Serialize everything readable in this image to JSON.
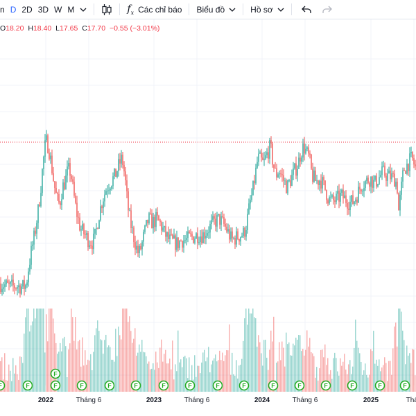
{
  "toolbar": {
    "interval_partial": "n",
    "intervals": [
      "D",
      "2D",
      "3D",
      "W",
      "M"
    ],
    "active_interval": "D",
    "indicators_label": "Các chỉ báo",
    "chart_label": "Biểu đồ",
    "profile_label": "Hồ sơ",
    "icons": [
      "chevron-down-icon",
      "candles-icon",
      "fx-icon",
      "undo-icon",
      "redo-icon"
    ]
  },
  "legend": {
    "o_label": "O",
    "o_value": "18.20",
    "h_label": "H",
    "h_value": "18.40",
    "l_label": "L",
    "l_value": "17.65",
    "c_label": "C",
    "c_value": "17.70",
    "change": "−0.55 (−3.01%)"
  },
  "colors": {
    "up": "#26a69a",
    "down": "#ef5350",
    "accent": "#2962ff",
    "event": "#22ab22",
    "price_line": "#f23645"
  },
  "chart_data": {
    "type": "candlestick",
    "x_tick_labels": [
      "2022",
      "Tháng 6",
      "2023",
      "Tháng 6",
      "2024",
      "Tháng 6",
      "2025",
      "Thán"
    ],
    "bold_ticks": [
      "2022",
      "2023",
      "2024",
      "2025"
    ],
    "price_path": [
      [
        0,
        9.3
      ],
      [
        6,
        9.2
      ],
      [
        14,
        9.0
      ],
      [
        24,
        9.1
      ],
      [
        34,
        9.0
      ],
      [
        38,
        9.2
      ],
      [
        40,
        10.2
      ],
      [
        45,
        12.0
      ],
      [
        50,
        13.5
      ],
      [
        55,
        15.5
      ],
      [
        58,
        17.0
      ],
      [
        62,
        19.5
      ],
      [
        66,
        21.5
      ],
      [
        70,
        21.0
      ],
      [
        74,
        19.5
      ],
      [
        78,
        17.8
      ],
      [
        82,
        16.5
      ],
      [
        86,
        16.0
      ],
      [
        90,
        17.5
      ],
      [
        94,
        18.0
      ],
      [
        98,
        19.0
      ],
      [
        102,
        18.8
      ],
      [
        106,
        17.0
      ],
      [
        110,
        15.5
      ],
      [
        116,
        14.0
      ],
      [
        122,
        13.5
      ],
      [
        128,
        13.0
      ],
      [
        134,
        12.8
      ],
      [
        138,
        13.5
      ],
      [
        142,
        15.0
      ],
      [
        148,
        16.5
      ],
      [
        154,
        17.5
      ],
      [
        160,
        18.0
      ],
      [
        166,
        18.5
      ],
      [
        172,
        19.5
      ],
      [
        176,
        20.0
      ],
      [
        180,
        18.5
      ],
      [
        184,
        16.0
      ],
      [
        188,
        14.5
      ],
      [
        192,
        13.5
      ],
      [
        196,
        12.5
      ],
      [
        200,
        11.8
      ],
      [
        204,
        12.5
      ],
      [
        208,
        13.5
      ],
      [
        214,
        14.8
      ],
      [
        220,
        14.5
      ],
      [
        226,
        14.8
      ],
      [
        232,
        14.3
      ],
      [
        238,
        13.5
      ],
      [
        244,
        13.0
      ],
      [
        250,
        12.8
      ],
      [
        256,
        12.7
      ],
      [
        262,
        13.0
      ],
      [
        268,
        13.0
      ],
      [
        274,
        13.2
      ],
      [
        280,
        13.3
      ],
      [
        286,
        13.5
      ],
      [
        292,
        13.4
      ],
      [
        298,
        13.8
      ],
      [
        304,
        14.2
      ],
      [
        310,
        14.6
      ],
      [
        316,
        14.8
      ],
      [
        322,
        14.4
      ],
      [
        328,
        13.8
      ],
      [
        334,
        13.0
      ],
      [
        340,
        13.2
      ],
      [
        346,
        13.4
      ],
      [
        352,
        13.6
      ],
      [
        356,
        14.5
      ],
      [
        360,
        16.0
      ],
      [
        364,
        17.0
      ],
      [
        368,
        18.5
      ],
      [
        372,
        20.0
      ],
      [
        376,
        19.8
      ],
      [
        380,
        19.5
      ],
      [
        386,
        20.5
      ],
      [
        390,
        21.0
      ],
      [
        394,
        19.5
      ],
      [
        398,
        18.5
      ],
      [
        402,
        19.0
      ],
      [
        406,
        18.5
      ],
      [
        410,
        18.0
      ],
      [
        414,
        17.5
      ],
      [
        418,
        18.0
      ],
      [
        424,
        18.8
      ],
      [
        430,
        19.5
      ],
      [
        434,
        20.5
      ],
      [
        438,
        21.0
      ],
      [
        442,
        20.5
      ],
      [
        446,
        20.0
      ],
      [
        450,
        18.5
      ],
      [
        456,
        18.0
      ],
      [
        462,
        18.2
      ],
      [
        468,
        17.5
      ],
      [
        474,
        16.5
      ],
      [
        480,
        16.3
      ],
      [
        486,
        16.5
      ],
      [
        492,
        16.8
      ],
      [
        498,
        16.5
      ],
      [
        504,
        16.2
      ],
      [
        510,
        16.3
      ],
      [
        516,
        17.0
      ],
      [
        522,
        17.8
      ],
      [
        528,
        18.0
      ],
      [
        534,
        18.3
      ],
      [
        540,
        17.8
      ],
      [
        546,
        18.3
      ],
      [
        552,
        18.8
      ],
      [
        558,
        18.5
      ],
      [
        564,
        18.4
      ],
      [
        570,
        18.2
      ],
      [
        573,
        17.5
      ],
      [
        575,
        15.5
      ],
      [
        578,
        17.0
      ],
      [
        582,
        19.0
      ],
      [
        588,
        19.5
      ],
      [
        594,
        20.0
      ],
      [
        600,
        19.0
      ]
    ],
    "event_markers": [
      {
        "label": "F"
      },
      {
        "label": "F"
      },
      {
        "label": "F"
      },
      {
        "label": "F"
      },
      {
        "label": "F"
      },
      {
        "label": "F"
      },
      {
        "label": "F"
      },
      {
        "label": "F"
      },
      {
        "label": "F"
      },
      {
        "label": "F"
      },
      {
        "label": "F"
      },
      {
        "label": "F"
      },
      {
        "label": "F"
      },
      {
        "label": "F"
      },
      {
        "label": "F"
      },
      {
        "label": "F"
      },
      {
        "label": "F"
      }
    ]
  }
}
